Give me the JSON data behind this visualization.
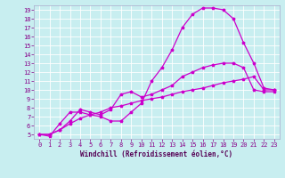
{
  "xlabel": "Windchill (Refroidissement éolien,°C)",
  "bg_color": "#c8eef0",
  "grid_color": "#ffffff",
  "line_color": "#cc00cc",
  "marker": "*",
  "markersize": 2.5,
  "linewidth": 0.9,
  "xlim": [
    -0.5,
    23.5
  ],
  "ylim": [
    4.5,
    19.5
  ],
  "xticks": [
    0,
    1,
    2,
    3,
    4,
    5,
    6,
    7,
    8,
    9,
    10,
    11,
    12,
    13,
    14,
    15,
    16,
    17,
    18,
    19,
    20,
    21,
    22,
    23
  ],
  "yticks": [
    5,
    6,
    7,
    8,
    9,
    10,
    11,
    12,
    13,
    14,
    15,
    16,
    17,
    18,
    19
  ],
  "tick_fontsize": 5,
  "xlabel_fontsize": 5.5,
  "lines": [
    [
      5.0,
      4.8,
      6.2,
      7.5,
      7.5,
      7.2,
      7.0,
      6.5,
      6.5,
      7.5,
      8.5,
      11.0,
      12.5,
      14.5,
      17.0,
      18.5,
      19.2,
      19.2,
      19.0,
      18.0,
      15.3,
      13.0,
      10.2,
      10.0
    ],
    [
      5.0,
      5.0,
      5.5,
      6.2,
      6.8,
      7.2,
      7.5,
      8.0,
      8.2,
      8.5,
      8.8,
      9.0,
      9.2,
      9.5,
      9.8,
      10.0,
      10.2,
      10.5,
      10.8,
      11.0,
      11.2,
      11.5,
      10.0,
      10.0
    ],
    [
      5.0,
      5.0,
      5.5,
      6.5,
      7.8,
      7.5,
      7.2,
      7.8,
      9.5,
      9.8,
      9.2,
      9.5,
      10.0,
      10.5,
      11.5,
      12.0,
      12.5,
      12.8,
      13.0,
      13.0,
      12.5,
      10.0,
      9.8,
      9.8
    ]
  ]
}
